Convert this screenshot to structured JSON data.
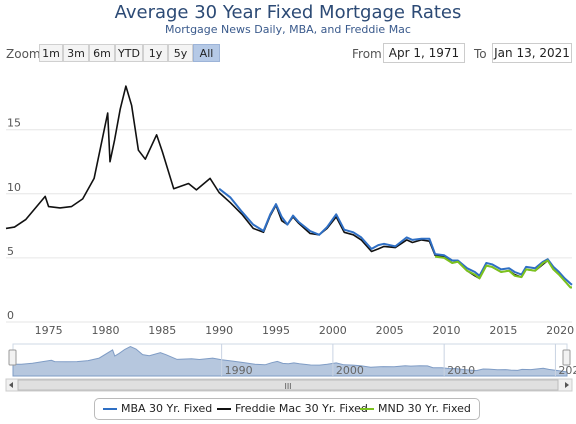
{
  "title": "Average 30 Year Fixed Mortgage Rates",
  "subtitle": "Mortgage News Daily, MBA, and Freddie Mac",
  "zoom": {
    "label": "Zoom",
    "buttons": [
      "1m",
      "3m",
      "6m",
      "YTD",
      "1y",
      "5y",
      "All"
    ],
    "active": "All"
  },
  "range": {
    "from_label": "From",
    "from_value": "Apr 1, 1971",
    "to_label": "To",
    "to_value": "Jan 13, 2021"
  },
  "navigator": {
    "year_labels": [
      "1990",
      "2000",
      "2010",
      "2020"
    ],
    "scroll_grip": "III"
  },
  "colors": {
    "mba": "#2f6fc4",
    "freddie": "#111111",
    "mnd": "#7cc21e",
    "navigator_fill": "#b6c7de"
  },
  "chart_data": {
    "type": "line",
    "title": "Average 30 Year Fixed Mortgage Rates",
    "subtitle": "Mortgage News Daily, MBA, and Freddie Mac",
    "x_type": "year",
    "xlim": [
      1971.25,
      2021.04
    ],
    "ylim": [
      0,
      19.5
    ],
    "x_ticks": [
      1975,
      1980,
      1985,
      1990,
      1995,
      2000,
      2005,
      2010,
      2015,
      2020
    ],
    "y_ticks": [
      0,
      5,
      10,
      15
    ],
    "grid": "y",
    "legend_position": "bottom-center",
    "series": [
      {
        "name": "MBA 30 Yr. Fixed",
        "color": "#2f6fc4",
        "x": [
          1990,
          1991,
          1992,
          1993,
          1993.9,
          1994.5,
          1995,
          1995.5,
          1996,
          1996.5,
          1997,
          1998,
          1998.8,
          1999.5,
          2000.3,
          2001,
          2001.8,
          2002.5,
          2003.4,
          2004,
          2004.5,
          2005.5,
          2006.5,
          2007,
          2007.8,
          2008.5,
          2009,
          2009.8,
          2010.5,
          2011,
          2011.8,
          2012.5,
          2012.9,
          2013.5,
          2014,
          2014.8,
          2015.5,
          2016,
          2016.6,
          2017,
          2017.8,
          2018.5,
          2018.9,
          2019.4,
          2019.9,
          2020.4,
          2020.9,
          2021.04
        ],
        "y": [
          10.4,
          9.7,
          8.6,
          7.6,
          7.1,
          8.4,
          9.2,
          8.2,
          7.6,
          8.3,
          7.8,
          7.1,
          6.8,
          7.4,
          8.4,
          7.2,
          7.0,
          6.6,
          5.7,
          6.0,
          6.1,
          5.9,
          6.6,
          6.4,
          6.5,
          6.5,
          5.3,
          5.2,
          4.8,
          4.8,
          4.2,
          3.9,
          3.6,
          4.6,
          4.5,
          4.1,
          4.2,
          3.9,
          3.7,
          4.3,
          4.2,
          4.7,
          4.9,
          4.3,
          3.9,
          3.4,
          3.0,
          2.9
        ]
      },
      {
        "name": "Freddie Mac 30 Yr. Fixed",
        "color": "#111111",
        "x": [
          1971.25,
          1972,
          1973,
          1974.7,
          1975,
          1976,
          1977,
          1978,
          1979,
          1980.2,
          1980.4,
          1980.8,
          1981.3,
          1981.8,
          1982.3,
          1982.9,
          1983.5,
          1984.5,
          1985,
          1986,
          1987.3,
          1988,
          1989.2,
          1990,
          1991,
          1992,
          1993,
          1993.9,
          1994.5,
          1995,
          1995.5,
          1996,
          1996.5,
          1997,
          1998,
          1998.8,
          1999.5,
          2000.3,
          2001,
          2001.8,
          2002.5,
          2003.4,
          2004,
          2004.5,
          2005.5,
          2006.5,
          2007,
          2007.8,
          2008.5,
          2009,
          2009.8,
          2010.5,
          2011,
          2011.8,
          2012.5,
          2012.9,
          2013.5,
          2014,
          2014.8,
          2015.5,
          2016,
          2016.6,
          2017,
          2017.8,
          2018.5,
          2018.9,
          2019.4,
          2019.9,
          2020.4,
          2020.9,
          2021.04
        ],
        "y": [
          7.3,
          7.4,
          8.0,
          9.8,
          9.0,
          8.9,
          9.0,
          9.6,
          11.2,
          16.3,
          12.5,
          14.2,
          16.6,
          18.4,
          16.9,
          13.4,
          12.7,
          14.6,
          13.3,
          10.4,
          10.8,
          10.3,
          11.2,
          10.1,
          9.3,
          8.4,
          7.3,
          7.0,
          8.3,
          9.1,
          7.9,
          7.6,
          8.2,
          7.7,
          6.9,
          6.8,
          7.3,
          8.2,
          7.0,
          6.8,
          6.4,
          5.5,
          5.7,
          5.9,
          5.8,
          6.4,
          6.2,
          6.4,
          6.3,
          5.2,
          5.1,
          4.6,
          4.7,
          4.0,
          3.6,
          3.4,
          4.4,
          4.3,
          3.9,
          4.0,
          3.7,
          3.5,
          4.1,
          4.0,
          4.5,
          4.8,
          4.1,
          3.7,
          3.2,
          2.7,
          2.7
        ]
      },
      {
        "name": "MND 30 Yr. Fixed",
        "color": "#7cc21e",
        "x": [
          2009,
          2009.8,
          2010.5,
          2011,
          2011.8,
          2012.5,
          2012.9,
          2013.5,
          2014,
          2014.8,
          2015.5,
          2016,
          2016.6,
          2017,
          2017.8,
          2018.5,
          2018.9,
          2019.4,
          2019.9,
          2020.4,
          2020.9,
          2021.04
        ],
        "y": [
          5.1,
          5.0,
          4.6,
          4.7,
          4.0,
          3.7,
          3.4,
          4.4,
          4.3,
          3.9,
          4.0,
          3.6,
          3.5,
          4.1,
          4.0,
          4.6,
          4.8,
          4.1,
          3.7,
          3.2,
          2.7,
          2.7
        ]
      }
    ]
  },
  "legend": {
    "items": [
      "MBA 30 Yr. Fixed",
      "Freddie Mac 30 Yr. Fixed",
      "MND 30 Yr. Fixed"
    ]
  }
}
